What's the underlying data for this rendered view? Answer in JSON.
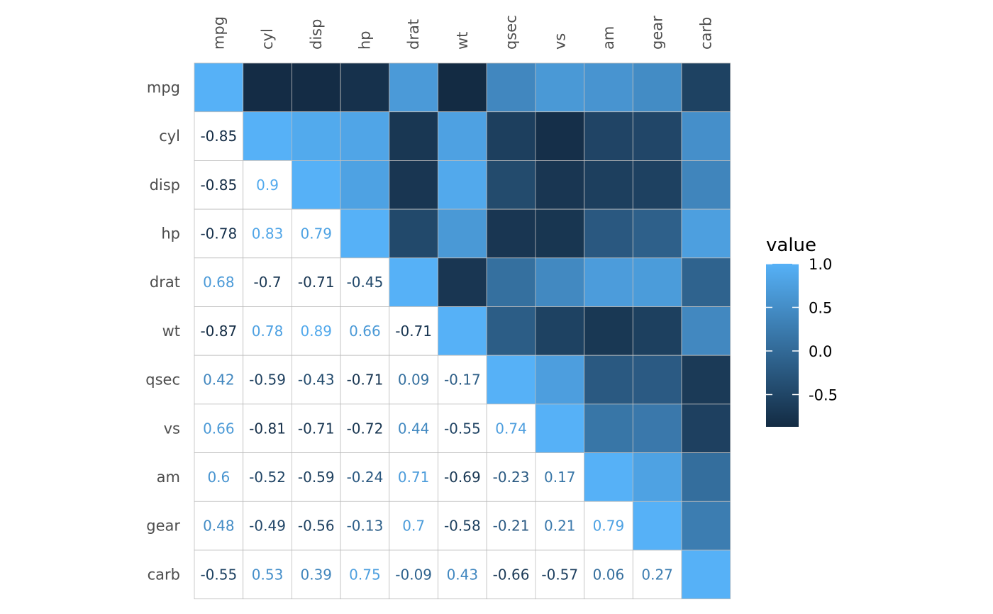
{
  "chart_data": {
    "type": "heatmap",
    "variables": [
      "mpg",
      "cyl",
      "disp",
      "hp",
      "drat",
      "wt",
      "qsec",
      "vs",
      "am",
      "gear",
      "carb"
    ],
    "matrix": [
      [
        1,
        -0.85,
        -0.85,
        -0.78,
        0.68,
        -0.87,
        0.42,
        0.66,
        0.6,
        0.48,
        -0.55
      ],
      [
        -0.85,
        1,
        0.9,
        0.83,
        -0.7,
        0.78,
        -0.59,
        -0.81,
        -0.52,
        -0.49,
        0.53
      ],
      [
        -0.85,
        0.9,
        1,
        0.79,
        -0.71,
        0.89,
        -0.43,
        -0.71,
        -0.59,
        -0.56,
        0.39
      ],
      [
        -0.78,
        0.83,
        0.79,
        1,
        -0.45,
        0.66,
        -0.71,
        -0.72,
        -0.24,
        -0.13,
        0.75
      ],
      [
        0.68,
        -0.7,
        -0.71,
        -0.45,
        1,
        -0.71,
        0.09,
        0.44,
        0.71,
        0.7,
        -0.09
      ],
      [
        -0.87,
        0.78,
        0.89,
        0.66,
        -0.71,
        1,
        -0.17,
        -0.55,
        -0.69,
        -0.58,
        0.43
      ],
      [
        0.42,
        -0.59,
        -0.43,
        -0.71,
        0.09,
        -0.17,
        1,
        0.74,
        -0.23,
        -0.21,
        -0.66
      ],
      [
        0.66,
        -0.81,
        -0.71,
        -0.72,
        0.44,
        -0.55,
        0.74,
        1,
        0.17,
        0.21,
        -0.57
      ],
      [
        0.6,
        -0.52,
        -0.59,
        -0.24,
        0.71,
        -0.69,
        -0.23,
        0.17,
        1,
        0.79,
        0.06
      ],
      [
        0.48,
        -0.49,
        -0.56,
        -0.13,
        0.7,
        -0.58,
        -0.21,
        0.21,
        0.79,
        1,
        0.27
      ],
      [
        -0.55,
        0.53,
        0.39,
        0.75,
        -0.09,
        0.43,
        -0.66,
        -0.57,
        0.06,
        0.27,
        1
      ]
    ],
    "upper_triangle": "fill",
    "lower_triangle": "text",
    "legend": {
      "title": "value",
      "ticks": [
        {
          "value": 1.0,
          "label": "1.0"
        },
        {
          "value": 0.5,
          "label": "0.5"
        },
        {
          "value": 0.0,
          "label": "0.0"
        },
        {
          "value": -0.5,
          "label": "-0.5"
        }
      ],
      "range": [
        -0.87,
        1
      ],
      "position": "right"
    },
    "colors": {
      "low": "#132b43",
      "high": "#56b1f7",
      "grid": "#bebebe",
      "axis_text": "#4d4d4d"
    }
  }
}
